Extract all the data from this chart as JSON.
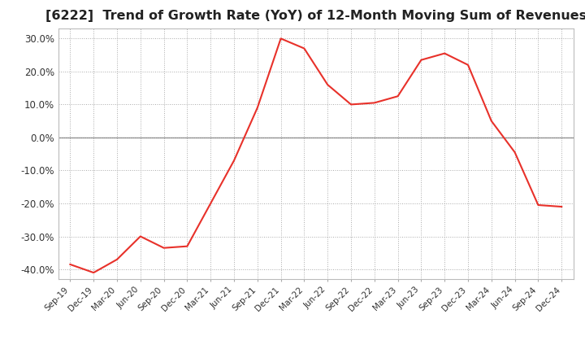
{
  "title": "[6222]  Trend of Growth Rate (YoY) of 12-Month Moving Sum of Revenues",
  "title_fontsize": 11.5,
  "line_color": "#e8312a",
  "background_color": "#ffffff",
  "grid_color": "#aaaaaa",
  "zero_line_color": "#888888",
  "ylim": [
    -43,
    33
  ],
  "yticks": [
    -40,
    -30,
    -20,
    -10,
    0,
    10,
    20,
    30
  ],
  "ytick_labels": [
    "-40.0%",
    "-30.0%",
    "-20.0%",
    "-10.0%",
    "0.0%",
    "10.0%",
    "20.0%",
    "30.0%"
  ],
  "x_labels": [
    "Sep-19",
    "Dec-19",
    "Mar-20",
    "Jun-20",
    "Sep-20",
    "Dec-20",
    "Mar-21",
    "Jun-21",
    "Sep-21",
    "Dec-21",
    "Mar-22",
    "Jun-22",
    "Sep-22",
    "Dec-22",
    "Mar-23",
    "Jun-23",
    "Sep-23",
    "Dec-23",
    "Mar-24",
    "Jun-24",
    "Sep-24",
    "Dec-24"
  ],
  "values": [
    -38.5,
    -41.0,
    -37.0,
    -30.0,
    -33.5,
    -33.0,
    -20.0,
    -7.0,
    9.0,
    30.0,
    27.0,
    16.0,
    10.0,
    10.5,
    12.5,
    23.5,
    25.5,
    22.0,
    5.0,
    -4.5,
    -20.5,
    -21.0
  ]
}
